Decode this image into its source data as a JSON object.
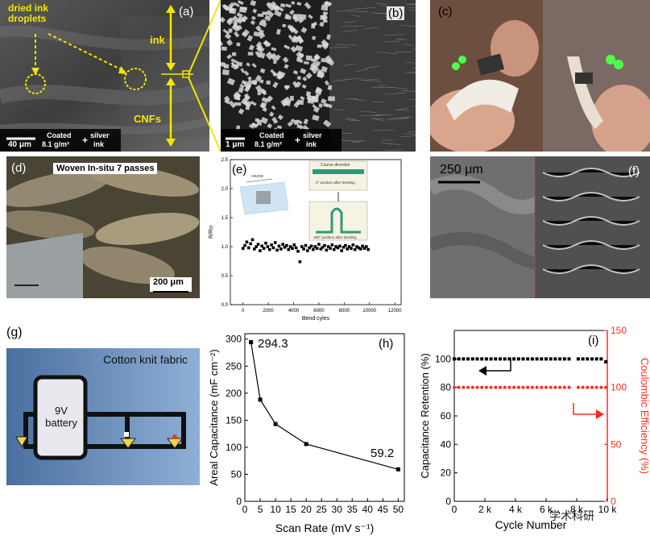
{
  "panels": {
    "a": {
      "label": "(a)",
      "droplets": "dried ink droplets",
      "ink": "ink",
      "cnfs": "CNFs",
      "scale": "40 μm",
      "coated": "Coated",
      "density": "8.1 g/m²",
      "plus": "+",
      "silver": "silver",
      "inkword": "ink"
    },
    "b": {
      "label": "(b)",
      "scale": "1 μm",
      "coated": "Coated",
      "density": "8.1 g/m²",
      "plus": "+",
      "silver": "silver",
      "inkword": "ink"
    },
    "c": {
      "label": "(c)"
    },
    "d": {
      "label": "(d)",
      "title": "Woven In-situ 7 passes",
      "scale": "200 μm"
    },
    "e": {
      "label": "(e)",
      "ylabel": "R/Ro",
      "xlabel": "Bend cyles",
      "inset_course": "course",
      "inset_course_dir": "Course direction",
      "inset_0": "0° position after bending",
      "inset_180": "180° position after bending"
    },
    "f": {
      "label": "(f)",
      "scale": "250 μm"
    },
    "g": {
      "label": "(g)",
      "fabric": "Cotton knit fabric",
      "battery": "9V battery"
    },
    "h": {
      "label": "(h)",
      "ylabel": "Areal Capacitance (mF cm⁻²)",
      "xlabel": "Scan Rate (mV s⁻¹)",
      "ann_top": "294.3",
      "ann_bottom": "59.2"
    },
    "i": {
      "label": "(i)",
      "ylabel_left": "Capacitance Retention (%)",
      "ylabel_right": "Coulombic Efficiency (%)",
      "xlabel": "Cycle Number",
      "watermark": "学术科研"
    }
  },
  "colors": {
    "highlight": "#f3e600",
    "coulombic": "#ff2a1a"
  },
  "chart_data": [
    {
      "id": "e",
      "type": "scatter",
      "xlabel": "Bend cyles",
      "ylabel": "R/Ro",
      "xlim": [
        -1000,
        12500
      ],
      "ylim": [
        0,
        2.5
      ],
      "xticks": [
        0,
        2000,
        4000,
        6000,
        8000,
        10000,
        12000
      ],
      "yticks": [
        0.0,
        0.5,
        1.0,
        1.5,
        2.0,
        2.5
      ],
      "grid": false,
      "series": [
        {
          "x": [
            0,
            150,
            300,
            450,
            600,
            750,
            900,
            1050,
            1200,
            1350,
            1500,
            1650,
            1800,
            1950,
            2100,
            2250,
            2400,
            2550,
            2700,
            2850,
            3000,
            3150,
            3300,
            3450,
            3600,
            3750,
            3900,
            4050,
            4200,
            4350,
            4500,
            4650,
            4800,
            4950,
            5100,
            5250,
            5400,
            5550,
            5700,
            5850,
            6000,
            6150,
            6300,
            6450,
            6600,
            6750,
            6900,
            7050,
            7200,
            7350,
            7500,
            7650,
            7800,
            7950,
            8100,
            8250,
            8400,
            8550,
            8700,
            8850,
            9000,
            9150,
            9300,
            9450,
            9600,
            9750,
            9900
          ],
          "y": [
            0.97,
            1.02,
            1.08,
            0.98,
            1.05,
            1.12,
            0.96,
            1.0,
            1.04,
            0.93,
            1.01,
            0.97,
            1.06,
            1.0,
            0.95,
            1.03,
            0.98,
            1.07,
            0.94,
            1.01,
            0.96,
            1.04,
            0.99,
            1.02,
            0.95,
            1.0,
            0.97,
            1.03,
            0.98,
            0.92,
            0.74,
            1.0,
            0.96,
            1.02,
            0.93,
            0.98,
            1.01,
            0.95,
            1.0,
            0.97,
            1.04,
            0.96,
            0.99,
            1.02,
            0.94,
            1.0,
            0.97,
            1.03,
            0.95,
            1.0,
            0.98,
            1.01,
            0.93,
            0.99,
            1.02,
            0.96,
            1.0,
            0.97,
            1.03,
            0.95,
            1.0,
            0.98,
            0.96,
            1.01,
            0.97,
            1.0,
            0.95
          ]
        }
      ]
    },
    {
      "id": "h",
      "type": "line",
      "xlabel": "Scan Rate (mV s⁻¹)",
      "ylabel": "Areal Capacitance (mF cm⁻²)",
      "xlim": [
        0,
        52
      ],
      "ylim": [
        0,
        310
      ],
      "xticks": [
        0,
        5,
        10,
        15,
        20,
        25,
        30,
        35,
        40,
        45,
        50
      ],
      "yticks": [
        0,
        50,
        100,
        150,
        200,
        250,
        300
      ],
      "grid": false,
      "series": [
        {
          "x": [
            2,
            5,
            10,
            20,
            50
          ],
          "y": [
            294.3,
            188,
            143,
            106,
            59.2
          ]
        }
      ]
    },
    {
      "id": "i",
      "type": "scatter",
      "xlabel": "Cycle Number",
      "ylabel_left": "Capacitance Retention (%)",
      "ylabel_right": "Coulombic Efficiency (%)",
      "xlim": [
        0,
        10000
      ],
      "ylim_left": [
        0,
        120
      ],
      "ylim_right": [
        0,
        150
      ],
      "xticks": [
        0,
        2000,
        4000,
        6000,
        8000,
        10000
      ],
      "xticklabels": [
        "0",
        "2 k",
        "4 k",
        "6 k",
        "8 k",
        "10 k"
      ],
      "yticks_left": [
        0,
        20,
        40,
        60,
        80,
        100
      ],
      "yticks_right": [
        0,
        50,
        100,
        150
      ],
      "grid": false,
      "series": [
        {
          "axis": "left",
          "color": "#000000",
          "x": [
            0,
            300,
            600,
            900,
            1200,
            1500,
            1800,
            2100,
            2400,
            2700,
            3000,
            3300,
            3600,
            3900,
            4200,
            4500,
            4800,
            5100,
            5400,
            5700,
            6000,
            6300,
            6600,
            6900,
            7200,
            7500,
            8100,
            8400,
            8700,
            9000,
            9300,
            9600,
            9900
          ],
          "y": [
            100,
            100,
            100,
            100,
            100,
            100,
            100,
            100,
            100,
            100,
            100,
            100,
            100,
            100,
            100,
            100,
            100,
            100,
            100,
            100,
            100,
            100,
            100,
            100,
            100,
            100,
            100,
            100,
            100,
            100,
            100,
            100,
            98
          ]
        },
        {
          "axis": "right",
          "color": "#ff2a1a",
          "x": [
            0,
            300,
            600,
            900,
            1200,
            1500,
            1800,
            2100,
            2400,
            2700,
            3000,
            3300,
            3600,
            3900,
            4200,
            4500,
            4800,
            5100,
            5400,
            5700,
            6000,
            6300,
            6600,
            6900,
            7200,
            7500,
            8100,
            8400,
            8700,
            9000,
            9300,
            9600,
            9900
          ],
          "y": [
            100,
            100,
            100,
            100,
            100,
            100,
            100,
            100,
            100,
            100,
            100,
            100,
            100,
            100,
            100,
            100,
            100,
            100,
            100,
            100,
            100,
            100,
            100,
            100,
            100,
            100,
            100,
            100,
            100,
            100,
            100,
            100,
            100
          ]
        }
      ]
    }
  ]
}
